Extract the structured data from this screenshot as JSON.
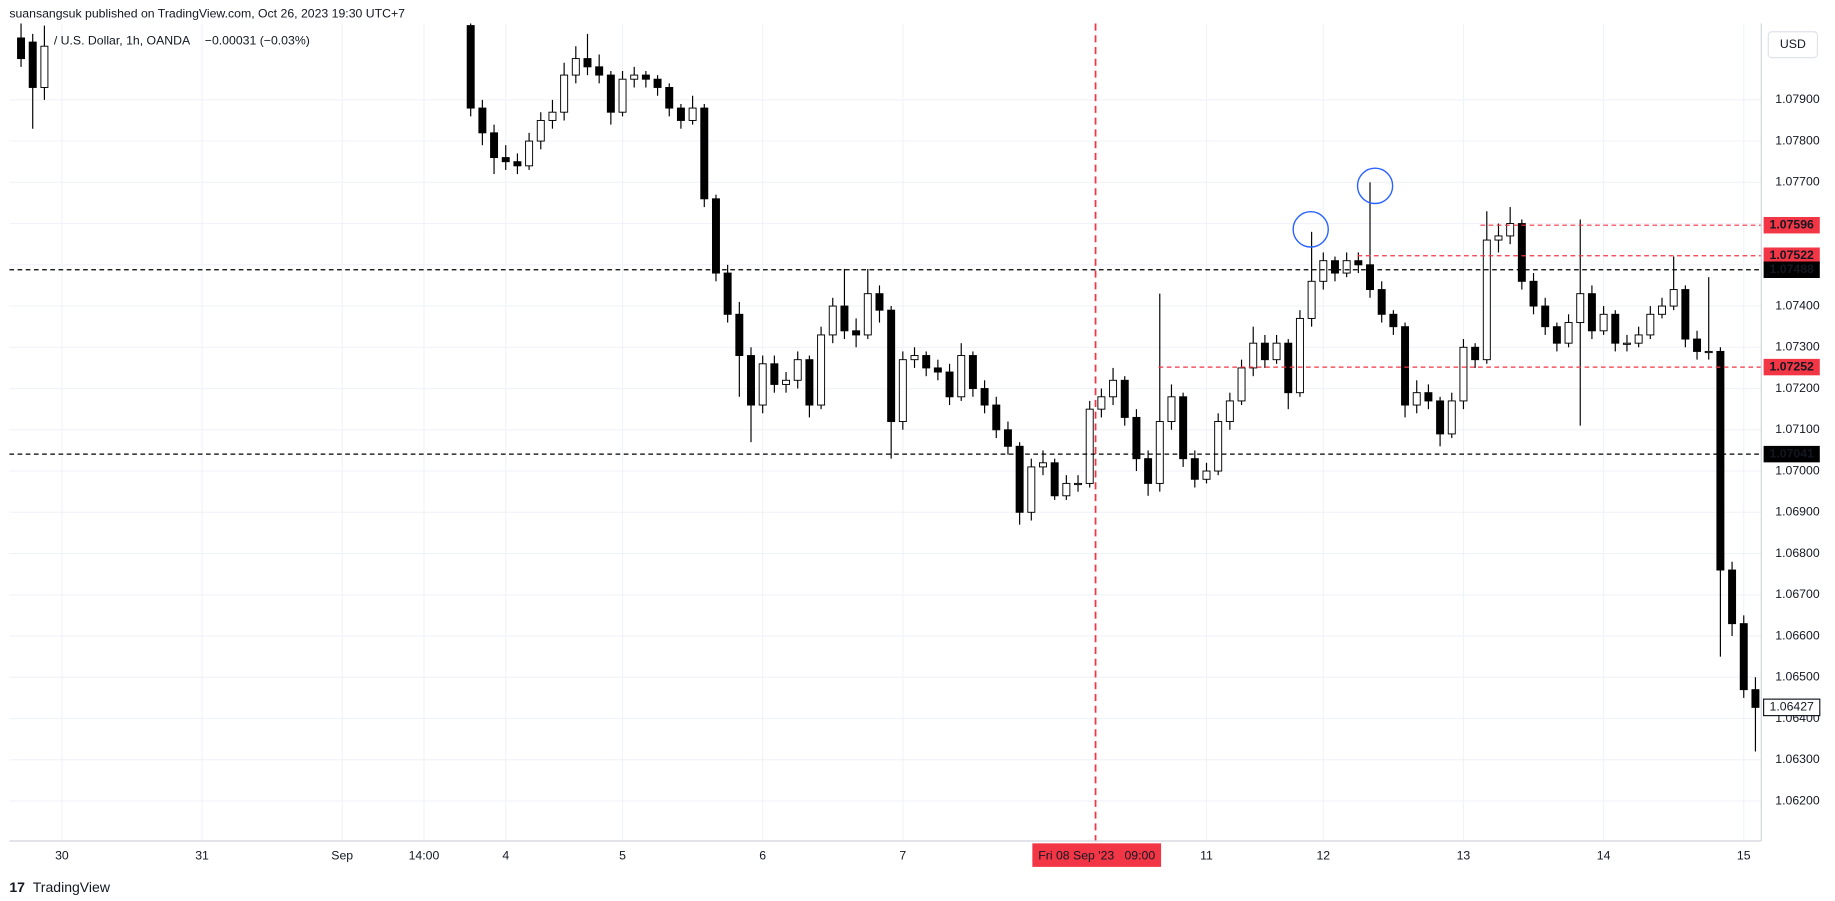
{
  "header": {
    "publisher_line": "suansangsuk published on TradingView.com, Oct 26, 2023 19:30 UTC+7",
    "symbol": "/ U.S. Dollar, 1h, OANDA",
    "change": "−0.00031 (−0.03%)",
    "currency": "USD"
  },
  "footer": {
    "brand": "TradingView"
  },
  "chart_data": {
    "type": "candlestick",
    "up_color": "#ffffff",
    "down_color": "#000000",
    "wick_color": "#000000",
    "grid": true,
    "xlim": [
      0,
      300
    ],
    "xticks": [
      {
        "value": 9,
        "label": "30"
      },
      {
        "value": 33,
        "label": "31"
      },
      {
        "value": 57,
        "label": "Sep"
      },
      {
        "value": 71,
        "label": "14:00"
      },
      {
        "value": 85,
        "label": "4"
      },
      {
        "value": 105,
        "label": "5"
      },
      {
        "value": 129,
        "label": "6"
      },
      {
        "value": 153,
        "label": "7"
      },
      {
        "value": 205,
        "label": "11"
      },
      {
        "value": 225,
        "label": "12"
      },
      {
        "value": 249,
        "label": "13"
      },
      {
        "value": 273,
        "label": "14"
      },
      {
        "value": 297,
        "label": "15"
      }
    ],
    "ylim": [
      1.06103,
      1.08085
    ],
    "yticks": [
      {
        "value": 1.062,
        "label": "1.06200"
      },
      {
        "value": 1.063,
        "label": "1.06300"
      },
      {
        "value": 1.064,
        "label": "1.06400"
      },
      {
        "value": 1.065,
        "label": "1.06500"
      },
      {
        "value": 1.066,
        "label": "1.06600"
      },
      {
        "value": 1.067,
        "label": "1.06700"
      },
      {
        "value": 1.068,
        "label": "1.06800"
      },
      {
        "value": 1.069,
        "label": "1.06900"
      },
      {
        "value": 1.07,
        "label": "1.07000"
      },
      {
        "value": 1.071,
        "label": "1.07100"
      },
      {
        "value": 1.072,
        "label": "1.07200"
      },
      {
        "value": 1.073,
        "label": "1.07300"
      },
      {
        "value": 1.074,
        "label": "1.07400"
      },
      {
        "value": 1.075,
        "label": "1.07500"
      },
      {
        "value": 1.076,
        "label": "1.07600"
      },
      {
        "value": 1.077,
        "label": "1.07700"
      },
      {
        "value": 1.078,
        "label": "1.07800"
      },
      {
        "value": 1.079,
        "label": "1.07900"
      }
    ],
    "x": [
      2,
      4,
      6,
      79,
      81,
      83,
      85,
      87,
      89,
      91,
      93,
      95,
      97,
      99,
      101,
      103,
      105,
      107,
      109,
      111,
      113,
      115,
      117,
      119,
      121,
      123,
      125,
      127,
      129,
      131,
      133,
      135,
      137,
      139,
      141,
      143,
      145,
      147,
      149,
      151,
      153,
      155,
      157,
      159,
      161,
      163,
      165,
      167,
      169,
      171,
      173,
      175,
      177,
      179,
      181,
      183,
      185,
      187,
      189,
      191,
      193,
      195,
      197,
      199,
      201,
      203,
      205,
      207,
      209,
      211,
      213,
      215,
      217,
      219,
      221,
      223,
      225,
      227,
      229,
      231,
      233,
      235,
      237,
      239,
      241,
      243,
      245,
      247,
      249,
      251,
      253,
      255,
      257,
      259,
      261,
      263,
      265,
      267,
      269,
      271,
      273,
      275,
      277,
      279,
      281,
      283,
      285,
      287,
      289,
      291,
      293,
      295,
      297,
      299
    ],
    "open": [
      1.0805,
      1.0804,
      1.0793,
      1.0808,
      1.0788,
      1.0782,
      1.0776,
      1.0775,
      1.0774,
      1.078,
      1.0785,
      1.0787,
      1.0796,
      1.08,
      1.0798,
      1.0796,
      1.0787,
      1.0795,
      1.0796,
      1.0795,
      1.0793,
      1.0788,
      1.0785,
      1.0788,
      1.0766,
      1.0748,
      1.0738,
      1.0728,
      1.0716,
      1.0726,
      1.0721,
      1.0722,
      1.0727,
      1.0716,
      1.0733,
      1.074,
      1.0734,
      1.0733,
      1.0743,
      1.0739,
      1.0712,
      1.0727,
      1.0728,
      1.0725,
      1.0724,
      1.0718,
      1.0728,
      1.072,
      1.0716,
      1.071,
      1.0706,
      1.069,
      1.0701,
      1.0702,
      1.0694,
      1.0697,
      1.0697,
      1.0715,
      1.0718,
      1.0722,
      1.0713,
      1.0703,
      1.0697,
      1.0712,
      1.0718,
      1.0703,
      1.0698,
      1.07,
      1.0712,
      1.0717,
      1.0725,
      1.0731,
      1.0727,
      1.0731,
      1.0719,
      1.0737,
      1.0746,
      1.0751,
      1.0748,
      1.0751,
      1.075,
      1.0744,
      1.0738,
      1.0735,
      1.0716,
      1.0719,
      1.0717,
      1.0709,
      1.0717,
      1.073,
      1.0727,
      1.0756,
      1.0757,
      1.076,
      1.0746,
      1.074,
      1.0735,
      1.0731,
      1.0736,
      1.0743,
      1.0734,
      1.0738,
      1.0731,
      1.0731,
      1.0733,
      1.0738,
      1.074,
      1.0744,
      1.0732,
      1.0729,
      1.0729,
      1.0676,
      1.0663,
      1.0647
    ],
    "high": [
      1.0812,
      1.0806,
      1.0808,
      1.081,
      1.079,
      1.0784,
      1.0779,
      1.0777,
      1.0782,
      1.0787,
      1.079,
      1.0799,
      1.0803,
      1.0806,
      1.0801,
      1.0797,
      1.0797,
      1.0798,
      1.0797,
      1.0796,
      1.0794,
      1.0789,
      1.0791,
      1.0789,
      1.0767,
      1.075,
      1.0741,
      1.073,
      1.0728,
      1.0728,
      1.0724,
      1.0729,
      1.0728,
      1.0735,
      1.0742,
      1.0749,
      1.0737,
      1.0749,
      1.0745,
      1.074,
      1.0729,
      1.073,
      1.0729,
      1.0727,
      1.0726,
      1.0731,
      1.0729,
      1.0722,
      1.0718,
      1.0712,
      1.0707,
      1.0703,
      1.0705,
      1.0703,
      1.0699,
      1.0699,
      1.0717,
      1.072,
      1.0725,
      1.0723,
      1.0715,
      1.0705,
      1.0743,
      1.0721,
      1.0719,
      1.0705,
      1.0702,
      1.0714,
      1.0719,
      1.0727,
      1.0735,
      1.0733,
      1.0733,
      1.0732,
      1.0739,
      1.0758,
      1.0753,
      1.0752,
      1.0753,
      1.0753,
      1.077,
      1.0746,
      1.0739,
      1.0736,
      1.0722,
      1.0721,
      1.0718,
      1.0719,
      1.0732,
      1.0731,
      1.0763,
      1.076,
      1.0764,
      1.0761,
      1.0748,
      1.0742,
      1.0736,
      1.0738,
      1.0761,
      1.0745,
      1.074,
      1.0739,
      1.0733,
      1.0735,
      1.074,
      1.0742,
      1.0752,
      1.0745,
      1.0734,
      1.0747,
      1.073,
      1.0678,
      1.0665,
      1.065
    ],
    "low": [
      1.0798,
      1.0783,
      1.079,
      1.0786,
      1.0779,
      1.0772,
      1.0773,
      1.0772,
      1.0773,
      1.0778,
      1.0783,
      1.0785,
      1.0794,
      1.0796,
      1.0794,
      1.0784,
      1.0786,
      1.0793,
      1.0793,
      1.0791,
      1.0786,
      1.0783,
      1.0784,
      1.0764,
      1.0746,
      1.0736,
      1.0718,
      1.0707,
      1.0714,
      1.0719,
      1.0719,
      1.072,
      1.0713,
      1.0715,
      1.0731,
      1.0732,
      1.073,
      1.0732,
      1.0736,
      1.0703,
      1.071,
      1.0725,
      1.0723,
      1.0722,
      1.0716,
      1.0717,
      1.0718,
      1.0714,
      1.0708,
      1.0704,
      1.0687,
      1.0688,
      1.0699,
      1.0693,
      1.0693,
      1.0695,
      1.0696,
      1.0713,
      1.0716,
      1.0711,
      1.07,
      1.0694,
      1.0695,
      1.071,
      1.0701,
      1.0696,
      1.0697,
      1.0699,
      1.071,
      1.0716,
      1.0723,
      1.0725,
      1.0726,
      1.0715,
      1.0718,
      1.0735,
      1.0744,
      1.0746,
      1.0747,
      1.0748,
      1.0742,
      1.0736,
      1.0733,
      1.0713,
      1.0714,
      1.0715,
      1.0706,
      1.0708,
      1.0715,
      1.0725,
      1.0726,
      1.0753,
      1.0755,
      1.0744,
      1.0738,
      1.0733,
      1.0729,
      1.073,
      1.0711,
      1.0732,
      1.0733,
      1.0729,
      1.0729,
      1.073,
      1.0732,
      1.0737,
      1.0739,
      1.073,
      1.0727,
      1.0727,
      1.0655,
      1.066,
      1.0645,
      1.0632
    ],
    "close": [
      1.08,
      1.0793,
      1.0803,
      1.0788,
      1.0782,
      1.0776,
      1.0775,
      1.0774,
      1.078,
      1.0785,
      1.0787,
      1.0796,
      1.08,
      1.0798,
      1.0796,
      1.0787,
      1.0795,
      1.0796,
      1.0795,
      1.0793,
      1.0788,
      1.0785,
      1.0788,
      1.0766,
      1.0748,
      1.0738,
      1.0728,
      1.0716,
      1.0726,
      1.0721,
      1.0722,
      1.0727,
      1.0716,
      1.0733,
      1.074,
      1.0734,
      1.0733,
      1.0743,
      1.0739,
      1.0712,
      1.0727,
      1.0728,
      1.0725,
      1.0724,
      1.0718,
      1.0728,
      1.072,
      1.0716,
      1.071,
      1.0706,
      1.069,
      1.0701,
      1.0702,
      1.0694,
      1.0697,
      1.0697,
      1.0715,
      1.0718,
      1.0722,
      1.0713,
      1.0703,
      1.0697,
      1.0712,
      1.0718,
      1.0703,
      1.0698,
      1.07,
      1.0712,
      1.0717,
      1.0725,
      1.0731,
      1.0727,
      1.0731,
      1.0719,
      1.0737,
      1.0746,
      1.0751,
      1.0748,
      1.0751,
      1.075,
      1.0744,
      1.0738,
      1.0735,
      1.0716,
      1.0719,
      1.0717,
      1.0709,
      1.0717,
      1.073,
      1.0727,
      1.0756,
      1.0757,
      1.076,
      1.0746,
      1.074,
      1.0735,
      1.0731,
      1.0736,
      1.0743,
      1.0734,
      1.0738,
      1.0731,
      1.0731,
      1.0733,
      1.0738,
      1.074,
      1.0744,
      1.0732,
      1.0729,
      1.0729,
      1.0676,
      1.0663,
      1.0647,
      1.06427
    ],
    "hlines": [
      {
        "value": 1.07596,
        "color": "#f23645"
      },
      {
        "value": 1.07522,
        "color": "#f23645"
      },
      {
        "value": 1.07488,
        "color": "#000000"
      },
      {
        "value": 1.07252,
        "color": "#f23645"
      },
      {
        "value": 1.07041,
        "color": "#000000"
      }
    ],
    "vline": {
      "x": 186,
      "label": "Fri 08 Sep '23   09:00",
      "color": "#f23645"
    }
  }
}
